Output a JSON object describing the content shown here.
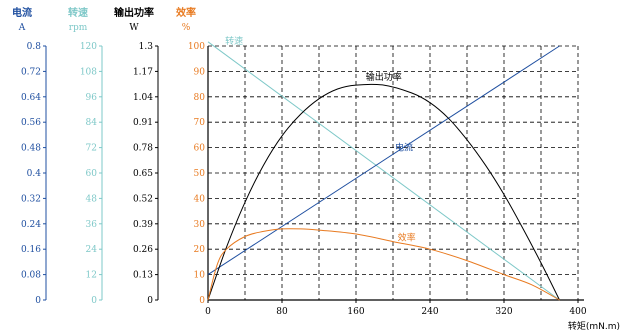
{
  "chart_data": {
    "type": "line",
    "colors": {
      "current": "#1f4fa0",
      "speed": "#7ec8c8",
      "power": "#000000",
      "efficiency": "#e87a20"
    },
    "axes": {
      "current": {
        "title": "电流",
        "unit": "A",
        "ticks": [
          "0",
          "0.08",
          "0.16",
          "0.24",
          "0.32",
          "0.4",
          "0.48",
          "0.56",
          "0.64",
          "0.72",
          "0.8"
        ],
        "range": [
          0,
          0.8
        ]
      },
      "speed": {
        "title": "转速",
        "unit": "rpm",
        "ticks": [
          "0",
          "12",
          "24",
          "36",
          "48",
          "60",
          "72",
          "84",
          "96",
          "108",
          "120"
        ],
        "range": [
          0,
          120
        ]
      },
      "power": {
        "title": "输出功率",
        "unit": "W",
        "ticks": [
          "0",
          "0.13",
          "0.26",
          "0.39",
          "0.52",
          "0.65",
          "0.78",
          "0.91",
          "1.04",
          "1.17",
          "1.3"
        ],
        "range": [
          0,
          1.3
        ]
      },
      "efficiency": {
        "title": "效率",
        "unit": "%",
        "ticks": [
          "0",
          "10",
          "20",
          "30",
          "40",
          "50",
          "60",
          "70",
          "80",
          "90",
          "100"
        ],
        "range": [
          0,
          100
        ]
      }
    },
    "xaxis": {
      "label": "转矩(mN.m)",
      "ticks": [
        "0",
        "80",
        "160",
        "240",
        "320",
        "400"
      ],
      "range": [
        0,
        400
      ]
    },
    "grid": true,
    "series": [
      {
        "key": "speed",
        "name": "转速",
        "x": [
          0,
          380
        ],
        "y": [
          122,
          0
        ]
      },
      {
        "key": "current",
        "name": "电流",
        "x": [
          0,
          380
        ],
        "y": [
          0.08,
          0.8
        ]
      },
      {
        "key": "power",
        "name": "输出功率",
        "x": [
          0,
          20,
          40,
          60,
          80,
          100,
          120,
          140,
          160,
          190,
          220,
          240,
          260,
          280,
          300,
          320,
          340,
          360,
          380
        ],
        "y": [
          0,
          0.27,
          0.5,
          0.69,
          0.84,
          0.95,
          1.03,
          1.08,
          1.1,
          1.1,
          1.06,
          1.01,
          0.93,
          0.82,
          0.69,
          0.54,
          0.37,
          0.19,
          0
        ]
      },
      {
        "key": "efficiency",
        "name": "效率",
        "x": [
          0,
          10,
          20,
          40,
          60,
          80,
          100,
          120,
          160,
          200,
          240,
          280,
          320,
          350,
          380
        ],
        "y": [
          0,
          14,
          20,
          25,
          27,
          28,
          28,
          27.5,
          26,
          23,
          20,
          15.5,
          10,
          6,
          0
        ]
      }
    ]
  }
}
